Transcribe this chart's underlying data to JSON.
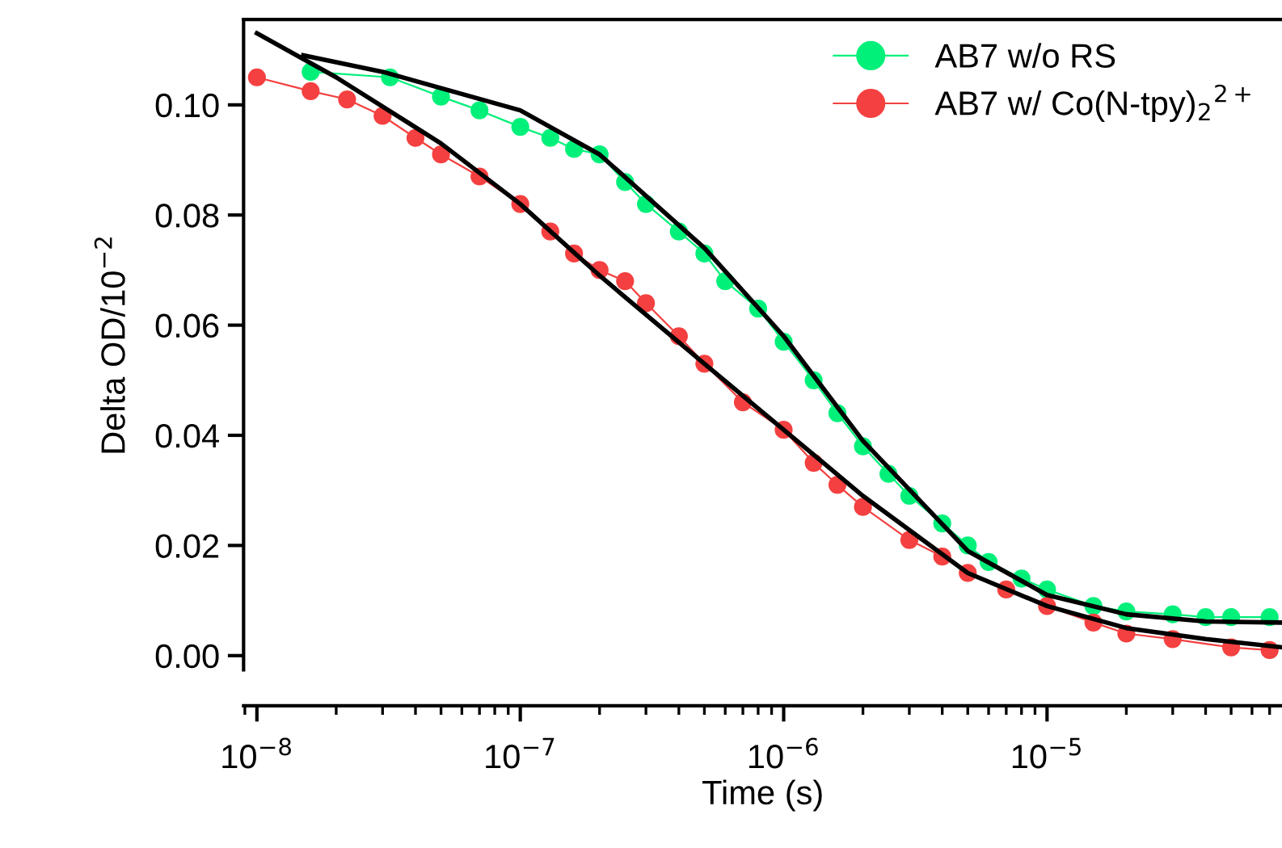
{
  "chart_data": {
    "type": "line",
    "xlabel": "Time (s)",
    "ylabel": "Delta OD/10$^{−2}$",
    "log": "x",
    "xlim": [
      8.9e-09,
      7.8e-05
    ],
    "ylim": [
      -0.0026,
      0.1155
    ],
    "xticks": [
      {
        "value": 1e-08,
        "label": "10$^{−8}$"
      },
      {
        "value": 1e-07,
        "label": "10$^{−7}$"
      },
      {
        "value": 1e-06,
        "label": "10$^{−6}$"
      },
      {
        "value": 1e-05,
        "label": "10$^{−5}$"
      }
    ],
    "yticks": [
      {
        "value": 0,
        "label": "0.00"
      },
      {
        "value": 0.02,
        "label": "0.02"
      },
      {
        "value": 0.04,
        "label": "0.04"
      },
      {
        "value": 0.06,
        "label": "0.06"
      },
      {
        "value": 0.08,
        "label": "0.08"
      },
      {
        "value": 0.1,
        "label": "0.10"
      }
    ],
    "grid": false,
    "legend": "top right",
    "series": [
      {
        "name": "AB7 w/o RS",
        "color": "#00f07a",
        "marker": "circle",
        "x": [
          1.6e-08,
          3.2e-08,
          5e-08,
          7e-08,
          1e-07,
          1.3e-07,
          1.6e-07,
          2e-07,
          2.5e-07,
          3e-07,
          4e-07,
          5e-07,
          6e-07,
          8e-07,
          1e-06,
          1.3e-06,
          1.6e-06,
          2e-06,
          2.5e-06,
          3e-06,
          4e-06,
          5e-06,
          6e-06,
          8e-06,
          1e-05,
          1.5e-05,
          2e-05,
          3e-05,
          4e-05,
          5e-05,
          7e-05
        ],
        "values": [
          0.106,
          0.105,
          0.1015,
          0.099,
          0.096,
          0.094,
          0.092,
          0.091,
          0.086,
          0.082,
          0.077,
          0.073,
          0.068,
          0.063,
          0.057,
          0.05,
          0.044,
          0.038,
          0.033,
          0.029,
          0.024,
          0.02,
          0.017,
          0.014,
          0.012,
          0.009,
          0.008,
          0.0075,
          0.007,
          0.007,
          0.007
        ]
      },
      {
        "name": "AB7 w/ Co(N-tpy)$_{2}$$^{2+}$",
        "color": "#f44040",
        "marker": "circle",
        "x": [
          1e-08,
          1.6e-08,
          2.2e-08,
          3e-08,
          4e-08,
          5e-08,
          7e-08,
          1e-07,
          1.3e-07,
          1.6e-07,
          2e-07,
          2.5e-07,
          3e-07,
          4e-07,
          5e-07,
          7e-07,
          1e-06,
          1.3e-06,
          1.6e-06,
          2e-06,
          3e-06,
          4e-06,
          5e-06,
          7e-06,
          1e-05,
          1.5e-05,
          2e-05,
          3e-05,
          5e-05,
          7e-05
        ],
        "values": [
          0.105,
          0.1025,
          0.101,
          0.098,
          0.094,
          0.091,
          0.087,
          0.082,
          0.077,
          0.073,
          0.07,
          0.068,
          0.064,
          0.058,
          0.053,
          0.046,
          0.041,
          0.035,
          0.031,
          0.027,
          0.021,
          0.018,
          0.015,
          0.012,
          0.009,
          0.006,
          0.004,
          0.003,
          0.0015,
          0.001
        ]
      },
      {
        "color": "#000000",
        "marker": "none",
        "x": [
          1.5e-08,
          3e-08,
          1e-07,
          2e-07,
          5e-07,
          1e-06,
          2e-06,
          5e-06,
          1e-05,
          2e-05,
          4e-05,
          7.8e-05
        ],
        "values": [
          0.109,
          0.106,
          0.099,
          0.091,
          0.074,
          0.058,
          0.039,
          0.019,
          0.011,
          0.0075,
          0.0062,
          0.006
        ]
      },
      {
        "color": "#000000",
        "marker": "none",
        "x": [
          1e-08,
          2e-08,
          5e-08,
          1e-07,
          2e-07,
          5e-07,
          1e-06,
          2e-06,
          5e-06,
          1e-05,
          2e-05,
          4e-05,
          7.8e-05
        ],
        "values": [
          0.113,
          0.105,
          0.093,
          0.082,
          0.069,
          0.053,
          0.041,
          0.029,
          0.015,
          0.009,
          0.005,
          0.003,
          0.0015
        ]
      }
    ]
  }
}
